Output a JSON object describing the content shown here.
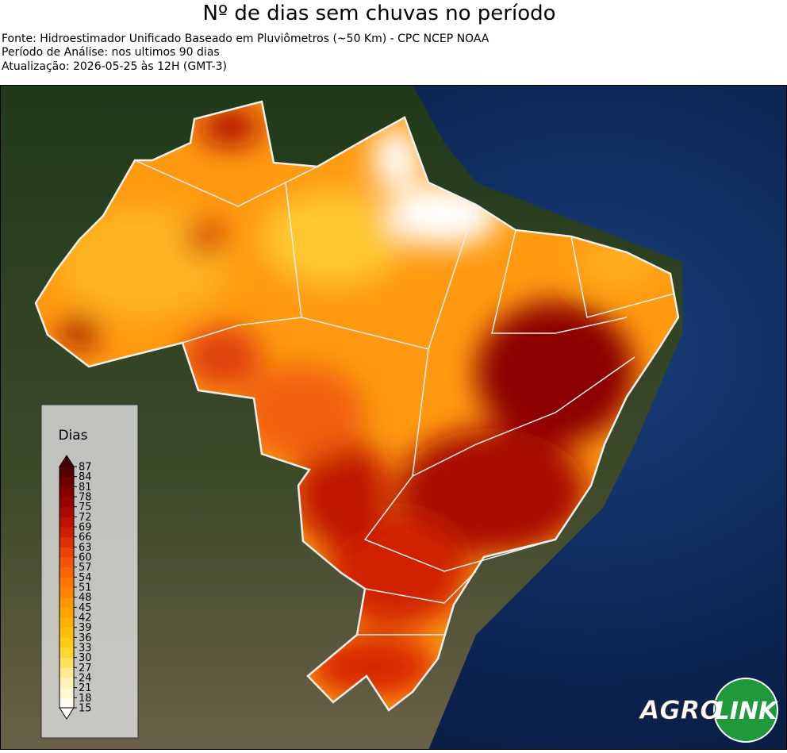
{
  "header": {
    "title": "Nº de dias sem chuvas no período",
    "lines": [
      "Fonte: Hidroestimador Unificado Baseado em Pluviômetros (~50 Km) - CPC NCEP NOAA",
      "Período de Análise: nos ultimos 90 dias",
      "Atualização: 2026-05-25 às 12H (GMT-3)"
    ]
  },
  "legend": {
    "title": "Dias",
    "ticks": [
      15,
      18,
      21,
      24,
      27,
      30,
      33,
      36,
      39,
      42,
      45,
      48,
      51,
      54,
      57,
      60,
      63,
      66,
      69,
      72,
      75,
      78,
      81,
      84,
      87
    ],
    "colormap": [
      "#ffffff",
      "#fff0a8",
      "#ffd21a",
      "#ffaa00",
      "#ff7f00",
      "#f04a0a",
      "#c81400",
      "#8c0000",
      "#4a0000"
    ]
  },
  "logo": {
    "left": "AGRO",
    "right": "LINK"
  }
}
